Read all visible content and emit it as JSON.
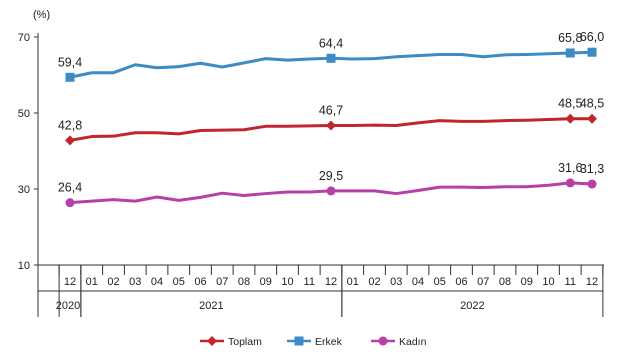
{
  "chart_data": {
    "type": "line",
    "ylabel": "(%)",
    "ylim": [
      10,
      70
    ],
    "yticks": [
      10,
      30,
      50,
      70
    ],
    "grid": false,
    "legend_position": "bottom",
    "categories": [
      "12",
      "01",
      "02",
      "03",
      "04",
      "05",
      "06",
      "07",
      "08",
      "09",
      "10",
      "11",
      "12",
      "01",
      "02",
      "03",
      "04",
      "05",
      "06",
      "07",
      "08",
      "09",
      "10",
      "11",
      "12"
    ],
    "year_groups": [
      {
        "label": "2020",
        "start": 0,
        "end": 0
      },
      {
        "label": "2021",
        "start": 1,
        "end": 12
      },
      {
        "label": "2022",
        "start": 13,
        "end": 24
      }
    ],
    "series": [
      {
        "name": "Toplam",
        "color": "#c0272d",
        "marker": "diamond",
        "values": [
          42.8,
          43.8,
          43.9,
          44.8,
          44.8,
          44.5,
          45.4,
          45.5,
          45.6,
          46.5,
          46.5,
          46.6,
          46.7,
          46.7,
          46.8,
          46.7,
          47.4,
          48.0,
          47.8,
          47.8,
          48.0,
          48.1,
          48.3,
          48.5,
          48.5
        ],
        "labels": [
          {
            "index": 0,
            "text": "42,8"
          },
          {
            "index": 12,
            "text": "46,7"
          },
          {
            "index": 23,
            "text": "48,5"
          },
          {
            "index": 24,
            "text": "48,5"
          }
        ]
      },
      {
        "name": "Erkek",
        "color": "#3d8bc4",
        "marker": "square",
        "values": [
          59.4,
          60.6,
          60.6,
          62.7,
          61.9,
          62.2,
          63.1,
          62.1,
          63.2,
          64.3,
          63.9,
          64.2,
          64.4,
          64.2,
          64.3,
          64.8,
          65.1,
          65.4,
          65.4,
          64.8,
          65.3,
          65.4,
          65.6,
          65.8,
          66.0
        ],
        "labels": [
          {
            "index": 0,
            "text": "59,4"
          },
          {
            "index": 12,
            "text": "64,4"
          },
          {
            "index": 23,
            "text": "65,8"
          },
          {
            "index": 24,
            "text": "66,0"
          }
        ]
      },
      {
        "name": "Kadın",
        "color": "#b640a8",
        "marker": "circle",
        "values": [
          26.4,
          26.8,
          27.2,
          26.8,
          27.9,
          27.0,
          27.8,
          28.9,
          28.3,
          28.8,
          29.2,
          29.2,
          29.5,
          29.5,
          29.5,
          28.8,
          29.6,
          30.5,
          30.5,
          30.4,
          30.6,
          30.6,
          31.0,
          31.6,
          31.3
        ],
        "labels": [
          {
            "index": 0,
            "text": "26,4"
          },
          {
            "index": 12,
            "text": "29,5"
          },
          {
            "index": 23,
            "text": "31,6"
          },
          {
            "index": 24,
            "text": "31,3"
          }
        ]
      }
    ]
  }
}
